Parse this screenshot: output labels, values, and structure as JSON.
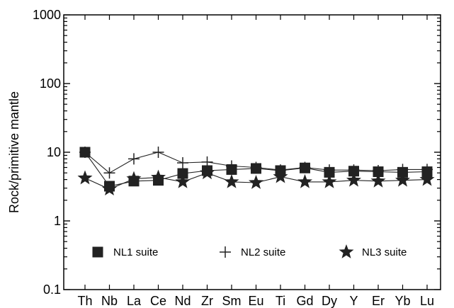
{
  "chart_data": {
    "type": "line",
    "ylabel": "Rock/primitive mantle",
    "xlabel": "",
    "yscale": "log",
    "ylim": [
      0.1,
      1000
    ],
    "yticks": [
      "0.1",
      "1",
      "10",
      "100",
      "1000"
    ],
    "categories": [
      "Th",
      "Nb",
      "La",
      "Ce",
      "Nd",
      "Zr",
      "Sm",
      "Eu",
      "Ti",
      "Gd",
      "Dy",
      "Y",
      "Er",
      "Yb",
      "Lu"
    ],
    "grid": false,
    "legend_position": "bottom",
    "series": [
      {
        "name": "NL1 suite",
        "marker": "square",
        "values": [
          10,
          3.2,
          3.8,
          3.9,
          4.9,
          5.4,
          5.6,
          5.8,
          5.4,
          5.9,
          5.1,
          5.3,
          5.2,
          5.1,
          5.2
        ]
      },
      {
        "name": "NL2 suite",
        "marker": "plus",
        "values": [
          10,
          5,
          8,
          10,
          7,
          7.2,
          6.3,
          6,
          5.5,
          6,
          5.5,
          5.5,
          5.4,
          5.6,
          5.6
        ]
      },
      {
        "name": "NL3 suite",
        "marker": "star",
        "values": [
          4.2,
          2.9,
          4.1,
          4.3,
          3.7,
          5,
          3.7,
          3.6,
          4.4,
          3.7,
          3.7,
          3.9,
          3.8,
          3.9,
          4.0
        ]
      }
    ],
    "colors": {
      "series": "#222222",
      "axis": "#000000"
    }
  }
}
